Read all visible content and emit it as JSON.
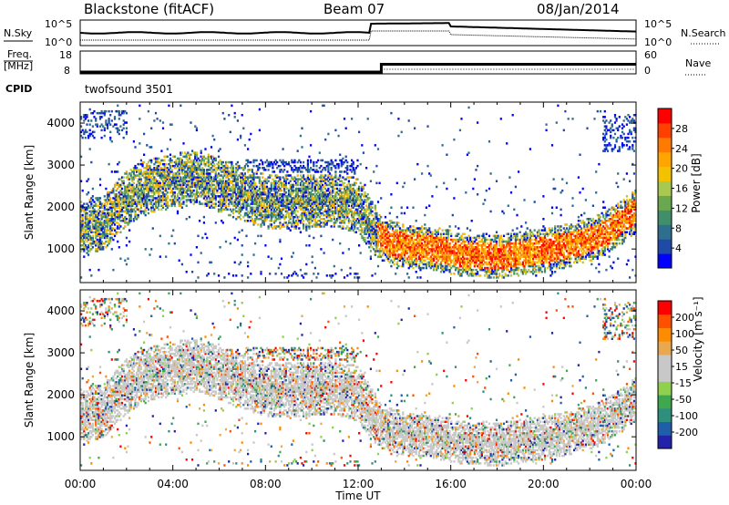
{
  "header": {
    "title": "Blackstone (fitACF)",
    "beam": "Beam 07",
    "date": "08/Jan/2014"
  },
  "left_labels": {
    "nsky": "N.Sky",
    "freq_line1": "Freq.",
    "freq_line2": "[MHz]",
    "cpid": "CPID"
  },
  "right_labels": {
    "nsearch": "N.Search",
    "nave": "Nave"
  },
  "ticks": {
    "noise_left_top": "10^5",
    "noise_left_bottom": "10^0",
    "noise_right_top": "10^5",
    "noise_right_bottom": "10^0",
    "freq_left_top": "18",
    "freq_left_bottom": "8",
    "nave_right_top": "60",
    "nave_right_bottom": "0"
  },
  "cpid_text": "twofsound 3501",
  "power_panel": {
    "ylabel": "Slant Range [km]",
    "yticks": [
      "1000",
      "2000",
      "3000",
      "4000"
    ],
    "colorbar_label": "Power [dB]",
    "colorbar_ticks": [
      "4",
      "8",
      "12",
      "16",
      "20",
      "24",
      "28"
    ],
    "colors": [
      "#0000ff",
      "#1f4aa8",
      "#2e6e8e",
      "#3f8f6a",
      "#6aa84f",
      "#a8c84f",
      "#f2c200",
      "#ffa500",
      "#ff7a00",
      "#ff4000",
      "#ff0000"
    ]
  },
  "velocity_panel": {
    "ylabel": "Slant Range [km]",
    "yticks": [
      "1000",
      "2000",
      "3000",
      "4000"
    ],
    "colorbar_label": "Velocity [m s⁻¹]",
    "colorbar_ticks": [
      "200",
      "100",
      "50",
      "15",
      "-15",
      "-50",
      "-100",
      "-200"
    ],
    "colors": [
      "#2222aa",
      "#1f5fa8",
      "#2e8f7e",
      "#3fa84f",
      "#8fd04f",
      "#c8c8c8",
      "#c8c8c8",
      "#e8a84f",
      "#ff8c00",
      "#ff5000",
      "#ff0000"
    ]
  },
  "xaxis": {
    "label": "Time UT",
    "ticks": [
      "00:00",
      "04:00",
      "08:00",
      "12:00",
      "16:00",
      "20:00",
      "00:00"
    ]
  },
  "chart_data": {
    "type": "heatmap",
    "title": "Blackstone (fitACF) Beam 07 08/Jan/2014",
    "xlabel": "Time UT",
    "ylabel": "Slant Range [km]",
    "xlim_hours": [
      0,
      24
    ],
    "ylim_km": [
      200,
      4500
    ],
    "freq_mhz": {
      "before_hours": 13.0,
      "before": 8,
      "after": 13
    },
    "echo_band_km": [
      [
        0.0,
        1500
      ],
      [
        1.0,
        1600
      ],
      [
        2.0,
        2200
      ],
      [
        3.0,
        2500
      ],
      [
        5.0,
        2700
      ],
      [
        6.0,
        2500
      ],
      [
        7.0,
        2300
      ],
      [
        8.0,
        2100
      ],
      [
        9.5,
        2100
      ],
      [
        11.0,
        2150
      ],
      [
        12.0,
        2000
      ],
      [
        12.8,
        1300
      ],
      [
        13.5,
        1100
      ],
      [
        15.0,
        1000
      ],
      [
        16.5,
        850
      ],
      [
        18.0,
        800
      ],
      [
        19.5,
        900
      ],
      [
        21.0,
        1050
      ],
      [
        22.5,
        1300
      ],
      [
        23.5,
        1700
      ],
      [
        24.0,
        1900
      ]
    ],
    "power_colorbar_range_db": [
      0,
      30
    ],
    "velocity_colorbar_range_ms": [
      -200,
      200
    ]
  }
}
